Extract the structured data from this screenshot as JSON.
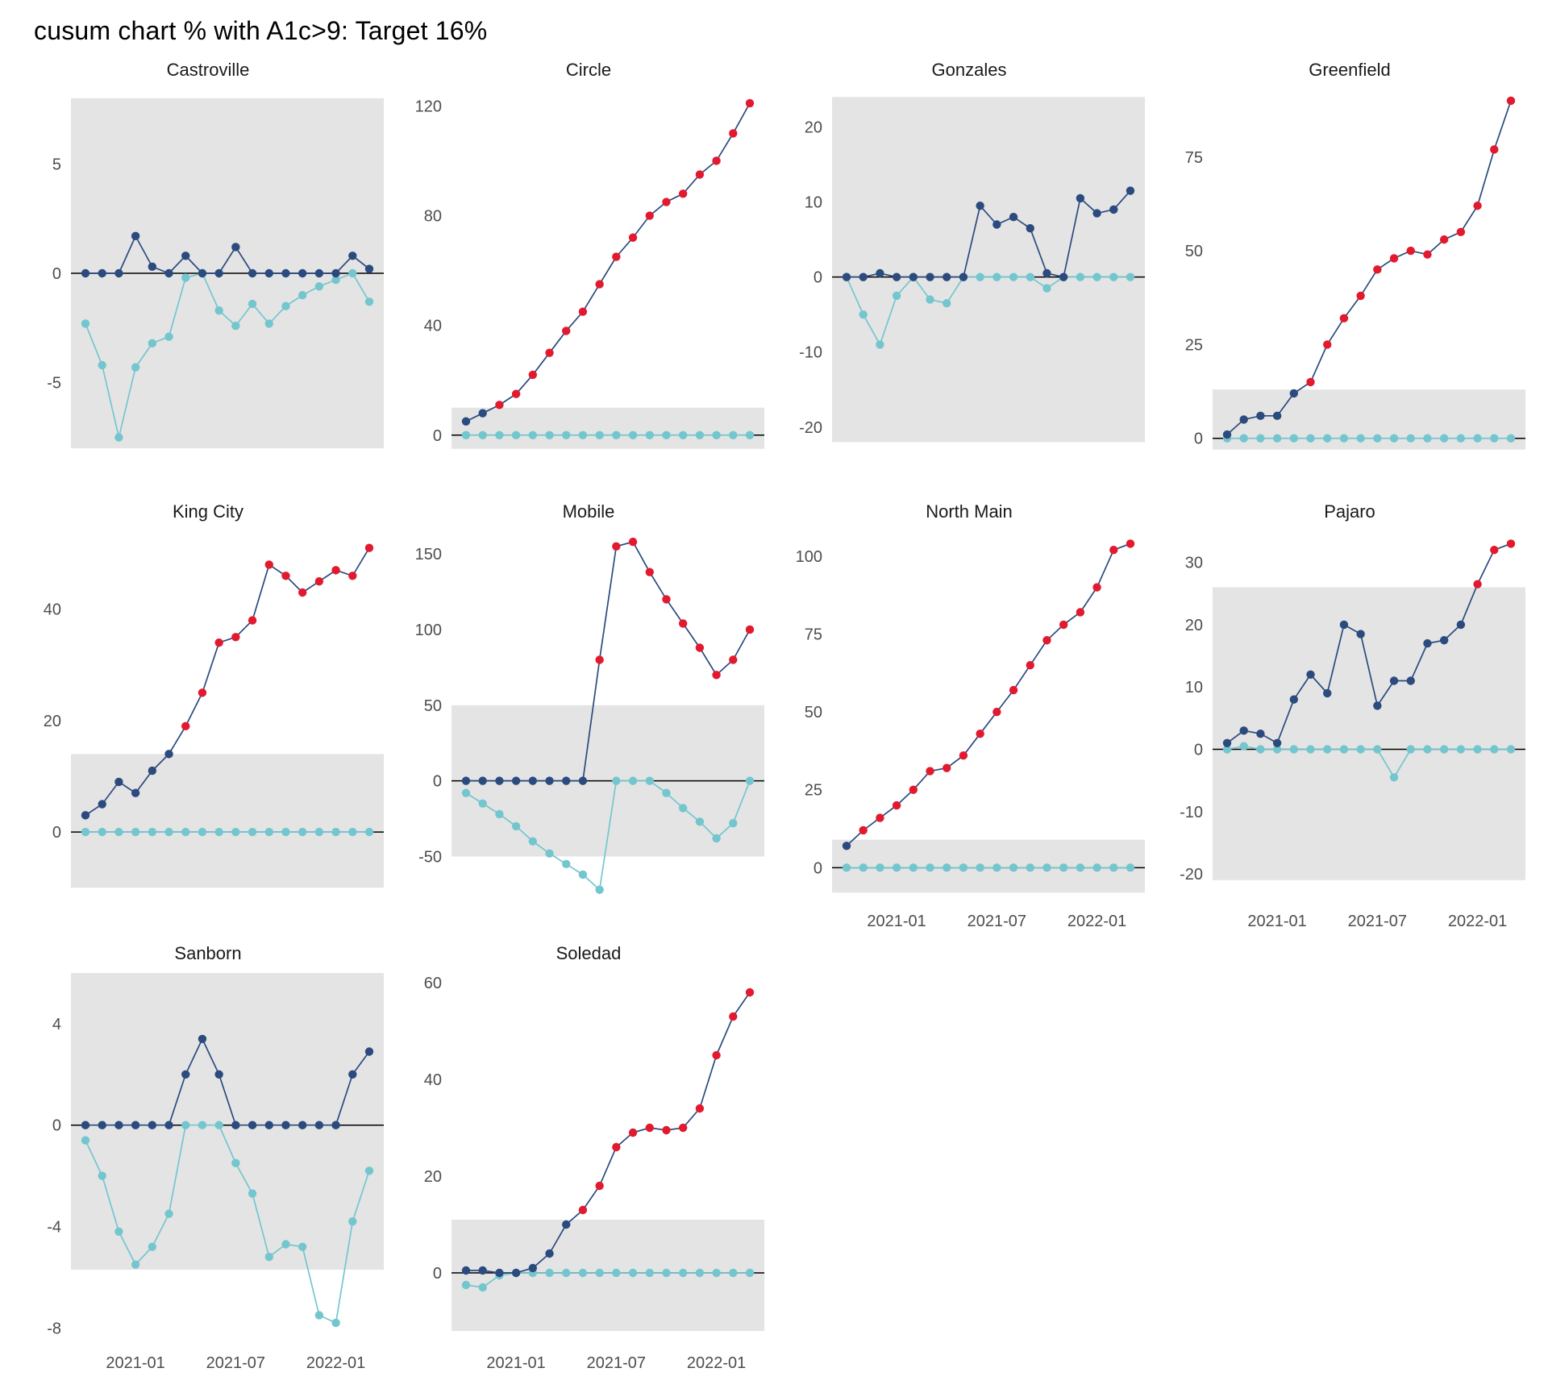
{
  "title": "cusum chart % with A1c>9: Target 16%",
  "chart_data": {
    "type": "line",
    "subtype": "cusum-facet-grid",
    "legend_position": "none",
    "grid": false,
    "colors": {
      "upper": "#2b4a7e",
      "signal": "#e3192e",
      "lower": "#74c6ce",
      "band": "#e4e4e4",
      "zero_line": "#000000",
      "axis_text": "#4d4d4d"
    },
    "x": [
      "2020-10",
      "2020-11",
      "2020-12",
      "2021-01",
      "2021-02",
      "2021-03",
      "2021-04",
      "2021-05",
      "2021-06",
      "2021-07",
      "2021-08",
      "2021-09",
      "2021-10",
      "2021-11",
      "2021-12",
      "2022-01",
      "2022-02",
      "2022-03"
    ],
    "x_ticks": [
      {
        "index": 3,
        "label": "2021-01"
      },
      {
        "index": 9,
        "label": "2021-07"
      },
      {
        "index": 15,
        "label": "2022-01"
      }
    ],
    "panels": [
      {
        "title": "Castroville",
        "ylim": [
          -8.4,
          8.4
        ],
        "yticks": [
          -5,
          0,
          5
        ],
        "band": [
          -8,
          8
        ],
        "show_x_axis": false,
        "upper": [
          0,
          0,
          0,
          1.7,
          0.3,
          0,
          0.8,
          0,
          0,
          1.2,
          0,
          0,
          0,
          0,
          0,
          0,
          0.8,
          0.2
        ],
        "lower": [
          -2.3,
          -4.2,
          -7.5,
          -4.3,
          -3.2,
          -2.9,
          -0.2,
          0,
          -1.7,
          -2.4,
          -1.4,
          -2.3,
          -1.5,
          -1.0,
          -0.6,
          -0.3,
          0,
          -1.3
        ]
      },
      {
        "title": "Circle",
        "ylim": [
          -8,
          126
        ],
        "yticks": [
          0,
          40,
          80,
          120
        ],
        "band": [
          -5,
          10
        ],
        "show_x_axis": false,
        "upper": [
          5,
          8,
          11,
          15,
          22,
          30,
          38,
          45,
          55,
          65,
          72,
          80,
          85,
          88,
          95,
          100,
          110,
          121
        ],
        "lower": [
          0,
          0,
          0,
          0,
          0,
          0,
          0,
          0,
          0,
          0,
          0,
          0,
          0,
          0,
          0,
          0,
          0,
          0
        ]
      },
      {
        "title": "Gonzales",
        "ylim": [
          -24,
          25
        ],
        "yticks": [
          -20,
          -10,
          0,
          10,
          20
        ],
        "band": [
          -22,
          24
        ],
        "show_x_axis": false,
        "upper": [
          0,
          0,
          0.5,
          0,
          0,
          0,
          0,
          0,
          9.5,
          7,
          8,
          6.5,
          0.5,
          0,
          10.5,
          8.5,
          9,
          11.5
        ],
        "lower": [
          0,
          -5,
          -9,
          -2.5,
          0,
          -3,
          -3.5,
          0,
          0,
          0,
          0,
          0,
          -1.5,
          0,
          0,
          0,
          0,
          0
        ]
      },
      {
        "title": "Greenfield",
        "ylim": [
          -5,
          93
        ],
        "yticks": [
          0,
          25,
          50,
          75
        ],
        "band": [
          -3,
          13
        ],
        "show_x_axis": false,
        "upper": [
          1,
          5,
          6,
          6,
          12,
          15,
          25,
          32,
          38,
          45,
          48,
          50,
          49,
          53,
          55,
          62,
          77,
          90
        ],
        "lower": [
          0,
          0,
          0,
          0,
          0,
          0,
          0,
          0,
          0,
          0,
          0,
          0,
          0,
          0,
          0,
          0,
          0,
          0
        ]
      },
      {
        "title": "King City",
        "ylim": [
          -12,
          54
        ],
        "yticks": [
          0,
          20,
          40
        ],
        "band": [
          -10,
          14
        ],
        "show_x_axis": false,
        "upper": [
          3,
          5,
          9,
          7,
          11,
          14,
          19,
          25,
          34,
          35,
          38,
          48,
          46,
          43,
          45,
          47,
          46,
          51
        ],
        "lower": [
          0,
          0,
          0,
          0,
          0,
          0,
          0,
          0,
          0,
          0,
          0,
          0,
          0,
          0,
          0,
          0,
          0,
          0
        ]
      },
      {
        "title": "Mobile",
        "ylim": [
          -78,
          165
        ],
        "yticks": [
          -50,
          0,
          50,
          100,
          150
        ],
        "band": [
          -50,
          50
        ],
        "show_x_axis": false,
        "upper": [
          0,
          0,
          0,
          0,
          0,
          0,
          0,
          0,
          80,
          155,
          158,
          138,
          120,
          104,
          88,
          70,
          80,
          100
        ],
        "lower": [
          -8,
          -15,
          -22,
          -30,
          -40,
          -48,
          -55,
          -62,
          -72,
          0,
          0,
          0,
          -8,
          -18,
          -27,
          -38,
          -28,
          0
        ]
      },
      {
        "title": "North Main",
        "ylim": [
          -10,
          108
        ],
        "yticks": [
          0,
          25,
          50,
          75,
          100
        ],
        "band": [
          -8,
          9
        ],
        "show_x_axis": true,
        "upper": [
          7,
          12,
          16,
          20,
          25,
          31,
          32,
          36,
          43,
          50,
          57,
          65,
          73,
          78,
          82,
          90,
          102,
          104
        ],
        "lower": [
          0,
          0,
          0,
          0,
          0,
          0,
          0,
          0,
          0,
          0,
          0,
          0,
          0,
          0,
          0,
          0,
          0,
          0
        ]
      },
      {
        "title": "Pajaro",
        "ylim": [
          -24,
          35
        ],
        "yticks": [
          -20,
          -10,
          0,
          10,
          20,
          30
        ],
        "band": [
          -21,
          26
        ],
        "show_x_axis": true,
        "upper": [
          1,
          3,
          2.5,
          1,
          8,
          12,
          9,
          20,
          18.5,
          7,
          11,
          11,
          17,
          17.5,
          20,
          26.5,
          32,
          33
        ],
        "lower": [
          0,
          0.5,
          0,
          0,
          0,
          0,
          0,
          0,
          0,
          0,
          -4.5,
          0,
          0,
          0,
          0,
          0,
          0,
          0
        ]
      },
      {
        "title": "Sanborn",
        "ylim": [
          -8.5,
          6
        ],
        "yticks": [
          -8,
          -4,
          0,
          4
        ],
        "band": [
          -5.7,
          6
        ],
        "show_x_axis": true,
        "upper": [
          0,
          0,
          0,
          0,
          0,
          0,
          2,
          3.4,
          2,
          0,
          0,
          0,
          0,
          0,
          0,
          0,
          2,
          2.9
        ],
        "lower": [
          -0.6,
          -2,
          -4.2,
          -5.5,
          -4.8,
          -3.5,
          0,
          0,
          0,
          -1.5,
          -2.7,
          -5.2,
          -4.7,
          -4.8,
          -7.5,
          -7.8,
          -3.8,
          -1.8
        ]
      },
      {
        "title": "Soledad",
        "ylim": [
          -14,
          62
        ],
        "yticks": [
          0,
          20,
          40,
          60
        ],
        "band": [
          -12,
          11
        ],
        "show_x_axis": true,
        "upper": [
          0.5,
          0.5,
          0,
          0,
          1,
          4,
          10,
          13,
          18,
          26,
          29,
          30,
          29.5,
          30,
          34,
          45,
          53,
          58
        ],
        "lower": [
          -2.5,
          -3,
          -0.5,
          0,
          0,
          0,
          0,
          0,
          0,
          0,
          0,
          0,
          0,
          0,
          0,
          0,
          0,
          0
        ]
      }
    ]
  }
}
